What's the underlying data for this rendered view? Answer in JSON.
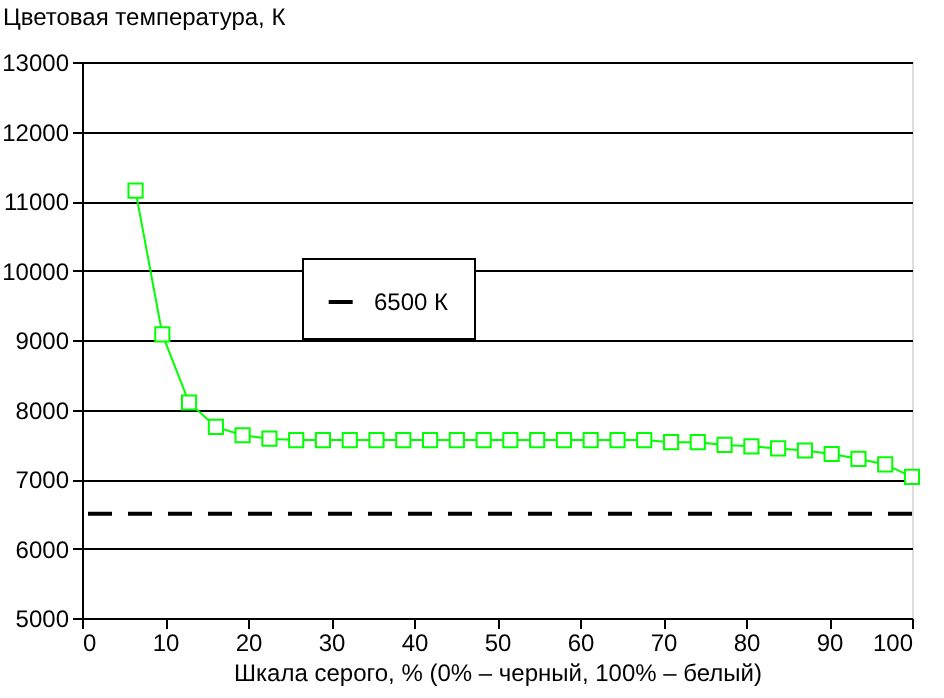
{
  "chart_data": {
    "type": "line",
    "xlabel": "Шкала серого, % (0% – черный, 100% – белый)",
    "ylabel": "Цветовая температура, К",
    "x": [
      6.45,
      9.68,
      12.9,
      16.13,
      19.35,
      22.58,
      25.81,
      29.03,
      32.26,
      35.48,
      38.71,
      41.94,
      45.16,
      48.39,
      51.61,
      54.84,
      58.06,
      61.29,
      64.52,
      67.74,
      70.97,
      74.19,
      77.42,
      80.65,
      83.87,
      87.1,
      90.32,
      93.55,
      96.77,
      100
    ],
    "series": [
      {
        "color": "#00ff00",
        "values": [
          11150,
          9080,
          8100,
          7750,
          7630,
          7580,
          7560,
          7560,
          7560,
          7560,
          7560,
          7560,
          7560,
          7560,
          7560,
          7560,
          7560,
          7560,
          7560,
          7560,
          7530,
          7530,
          7490,
          7470,
          7440,
          7410,
          7360,
          7290,
          7210,
          7030
        ]
      }
    ],
    "marker": "square",
    "line_style": "solid",
    "ref_lines": [
      {
        "axis": "y",
        "value": 6500,
        "label": "6500 К",
        "color": "#000000",
        "line_style": "dashed"
      }
    ],
    "xlim": [
      0,
      100
    ],
    "xticks": [
      0,
      10,
      20,
      30,
      40,
      50,
      60,
      70,
      80,
      90,
      100
    ],
    "ylim": [
      5000,
      13000
    ],
    "yticks": [
      5000,
      6000,
      7000,
      8000,
      9000,
      10000,
      11000,
      12000,
      13000
    ],
    "grid": "y",
    "legend": "top"
  }
}
